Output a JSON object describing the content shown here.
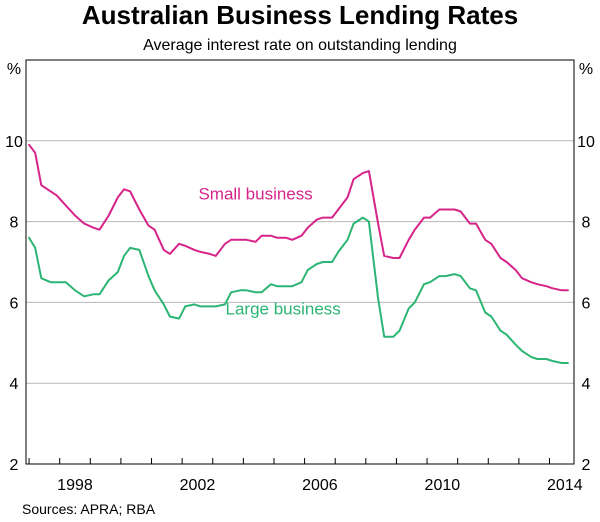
{
  "chart_data": {
    "type": "line",
    "title": "Australian Business Lending Rates",
    "subtitle": "Average interest rate on outstanding lending",
    "unit_left": "%",
    "unit_right": "%",
    "y_ticks": [
      2,
      4,
      6,
      8,
      10
    ],
    "ylim": [
      2,
      12
    ],
    "x_ticks": [
      1998,
      2002,
      2006,
      2010,
      2014
    ],
    "xlim": [
      1996.9,
      2014.8
    ],
    "grid": true,
    "series": [
      {
        "name": "Small business",
        "color": "#d6248a",
        "x": [
          1997.0,
          1997.2,
          1997.4,
          1997.7,
          1997.9,
          1998.2,
          1998.5,
          1998.8,
          1999.1,
          1999.3,
          1999.6,
          1999.9,
          2000.1,
          2000.3,
          2000.6,
          2000.9,
          2001.1,
          2001.4,
          2001.6,
          2001.9,
          2002.1,
          2002.4,
          2002.6,
          2002.9,
          2003.1,
          2003.4,
          2003.6,
          2003.9,
          2004.1,
          2004.4,
          2004.6,
          2004.9,
          2005.1,
          2005.4,
          2005.6,
          2005.9,
          2006.1,
          2006.4,
          2006.6,
          2006.9,
          2007.1,
          2007.4,
          2007.6,
          2007.9,
          2008.1,
          2008.4,
          2008.6,
          2008.9,
          2009.1,
          2009.4,
          2009.6,
          2009.9,
          2010.1,
          2010.4,
          2010.6,
          2010.9,
          2011.1,
          2011.4,
          2011.6,
          2011.9,
          2012.1,
          2012.4,
          2012.6,
          2012.9,
          2013.1,
          2013.4,
          2013.6,
          2013.9,
          2014.1,
          2014.4,
          2014.6
        ],
        "values": [
          9.9,
          9.7,
          8.9,
          8.75,
          8.65,
          8.4,
          8.15,
          7.95,
          7.85,
          7.8,
          8.15,
          8.6,
          8.8,
          8.75,
          8.3,
          7.9,
          7.8,
          7.3,
          7.2,
          7.45,
          7.4,
          7.3,
          7.25,
          7.2,
          7.15,
          7.45,
          7.55,
          7.55,
          7.55,
          7.5,
          7.65,
          7.65,
          7.6,
          7.6,
          7.55,
          7.65,
          7.85,
          8.05,
          8.1,
          8.1,
          8.3,
          8.6,
          9.05,
          9.2,
          9.25,
          7.95,
          7.15,
          7.1,
          7.1,
          7.55,
          7.8,
          8.1,
          8.1,
          8.3,
          8.3,
          8.3,
          8.25,
          7.95,
          7.95,
          7.55,
          7.45,
          7.1,
          7.0,
          6.8,
          6.6,
          6.5,
          6.45,
          6.4,
          6.35,
          6.3,
          6.3
        ]
      },
      {
        "name": "Large business",
        "color": "#2cb574",
        "x": [
          1997.0,
          1997.2,
          1997.4,
          1997.7,
          1997.9,
          1998.2,
          1998.5,
          1998.8,
          1999.1,
          1999.3,
          1999.6,
          1999.9,
          2000.1,
          2000.3,
          2000.6,
          2000.9,
          2001.1,
          2001.4,
          2001.6,
          2001.9,
          2002.1,
          2002.4,
          2002.6,
          2002.9,
          2003.1,
          2003.4,
          2003.6,
          2003.9,
          2004.1,
          2004.4,
          2004.6,
          2004.9,
          2005.1,
          2005.4,
          2005.6,
          2005.9,
          2006.1,
          2006.4,
          2006.6,
          2006.9,
          2007.1,
          2007.4,
          2007.6,
          2007.9,
          2008.1,
          2008.4,
          2008.6,
          2008.9,
          2009.1,
          2009.4,
          2009.6,
          2009.9,
          2010.1,
          2010.4,
          2010.6,
          2010.9,
          2011.1,
          2011.4,
          2011.6,
          2011.9,
          2012.1,
          2012.4,
          2012.6,
          2012.9,
          2013.1,
          2013.4,
          2013.6,
          2013.9,
          2014.1,
          2014.4,
          2014.6
        ],
        "values": [
          7.6,
          7.35,
          6.6,
          6.5,
          6.5,
          6.5,
          6.3,
          6.15,
          6.2,
          6.2,
          6.55,
          6.75,
          7.15,
          7.35,
          7.3,
          6.65,
          6.3,
          5.95,
          5.65,
          5.6,
          5.9,
          5.95,
          5.9,
          5.9,
          5.9,
          5.95,
          6.25,
          6.3,
          6.3,
          6.25,
          6.25,
          6.45,
          6.4,
          6.4,
          6.4,
          6.5,
          6.8,
          6.95,
          7.0,
          7.0,
          7.25,
          7.55,
          7.95,
          8.1,
          8.0,
          6.1,
          5.15,
          5.15,
          5.3,
          5.85,
          6.0,
          6.45,
          6.5,
          6.65,
          6.65,
          6.7,
          6.65,
          6.35,
          6.3,
          5.75,
          5.65,
          5.3,
          5.2,
          4.95,
          4.8,
          4.65,
          4.6,
          4.6,
          4.55,
          4.5,
          4.5
        ]
      }
    ],
    "annotations": [
      {
        "text": "Small business",
        "series": "Small business",
        "at": [
          2004.4,
          8.55
        ]
      },
      {
        "text": "Large business",
        "series": "Large business",
        "at": [
          2005.3,
          5.7
        ]
      }
    ],
    "source": "Sources:   APRA; RBA"
  }
}
